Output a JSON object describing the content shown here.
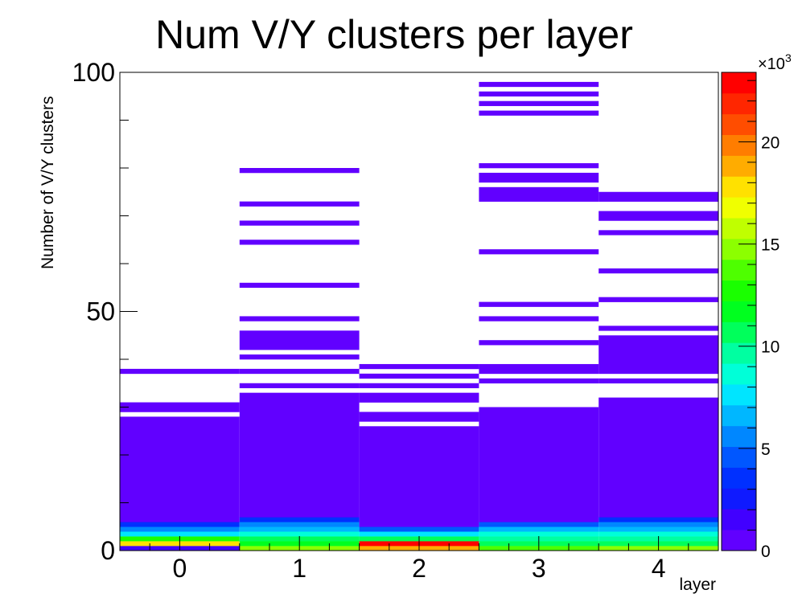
{
  "chart_data": {
    "type": "heatmap",
    "title": "Num V/Y clusters per layer",
    "xlabel": "layer",
    "ylabel": "Number of V/Y clusters",
    "xlim": [
      -0.5,
      4.5
    ],
    "ylim": [
      0,
      100
    ],
    "x_ticks": [
      "0",
      "1",
      "2",
      "3",
      "4"
    ],
    "y_ticks": [
      "0",
      "50",
      "100"
    ],
    "grid": false,
    "colorbar": {
      "min": 0,
      "max": 23400,
      "exponent_label": "×10",
      "exponent_power": "3",
      "ticks": [
        "0",
        "5",
        "10",
        "15",
        "20"
      ],
      "tick_values": [
        0,
        5000,
        10000,
        15000,
        20000
      ],
      "colors": [
        "#6100ff",
        "#4100ff",
        "#0f1aff",
        "#0030ff",
        "#0057ff",
        "#0087ff",
        "#00b7ff",
        "#00e5ff",
        "#00ffd8",
        "#00ffa1",
        "#00ff5b",
        "#00ff1f",
        "#1aff00",
        "#4eff00",
        "#8cff00",
        "#c0ff00",
        "#f0ff00",
        "#ffe100",
        "#ffac00",
        "#ff7d00",
        "#ff4d00",
        "#ff2600",
        "#ff0000"
      ]
    },
    "bins": [
      {
        "layer": 0,
        "ranges": [
          [
            0,
            1,
            "#4100ff"
          ],
          [
            1,
            2,
            "#ffe100"
          ],
          [
            2,
            3,
            "#1aff00"
          ],
          [
            3,
            4,
            "#00e5ff"
          ],
          [
            4,
            5,
            "#0087ff"
          ],
          [
            5,
            6,
            "#0030ff"
          ],
          [
            6,
            28,
            "#6100ff"
          ],
          [
            29,
            31,
            "#6100ff"
          ],
          [
            37,
            38,
            "#6100ff"
          ]
        ]
      },
      {
        "layer": 1,
        "ranges": [
          [
            0,
            1,
            "#8cff00"
          ],
          [
            1,
            2,
            "#00ff1f"
          ],
          [
            2,
            3,
            "#00ff5b"
          ],
          [
            3,
            4,
            "#00ffd8"
          ],
          [
            4,
            5,
            "#00b7ff"
          ],
          [
            5,
            6,
            "#0087ff"
          ],
          [
            6,
            7,
            "#0030ff"
          ],
          [
            7,
            33,
            "#6100ff"
          ],
          [
            34,
            35,
            "#6100ff"
          ],
          [
            37,
            38,
            "#6100ff"
          ],
          [
            40,
            41,
            "#6100ff"
          ],
          [
            42,
            46,
            "#6100ff"
          ],
          [
            48,
            49,
            "#6100ff"
          ],
          [
            55,
            56,
            "#6100ff"
          ],
          [
            64,
            65,
            "#6100ff"
          ],
          [
            68,
            69,
            "#6100ff"
          ],
          [
            72,
            73,
            "#6100ff"
          ],
          [
            79,
            80,
            "#6100ff"
          ]
        ]
      },
      {
        "layer": 2,
        "ranges": [
          [
            0,
            1,
            "#ffac00"
          ],
          [
            1,
            2,
            "#ff0000"
          ],
          [
            2,
            3,
            "#00ff5b"
          ],
          [
            3,
            4,
            "#00e5ff"
          ],
          [
            4,
            5,
            "#0057ff"
          ],
          [
            5,
            26,
            "#6100ff"
          ],
          [
            27,
            29,
            "#6100ff"
          ],
          [
            31,
            33,
            "#6100ff"
          ],
          [
            34,
            35,
            "#6100ff"
          ],
          [
            36,
            37,
            "#6100ff"
          ],
          [
            38,
            39,
            "#6100ff"
          ]
        ]
      },
      {
        "layer": 3,
        "ranges": [
          [
            0,
            1,
            "#4eff00"
          ],
          [
            1,
            2,
            "#00ff5b"
          ],
          [
            2,
            3,
            "#00ffa1"
          ],
          [
            3,
            4,
            "#00ffd8"
          ],
          [
            4,
            5,
            "#00b7ff"
          ],
          [
            5,
            6,
            "#0057ff"
          ],
          [
            6,
            30,
            "#6100ff"
          ],
          [
            35,
            36,
            "#6100ff"
          ],
          [
            37,
            39,
            "#6100ff"
          ],
          [
            43,
            44,
            "#6100ff"
          ],
          [
            48,
            49,
            "#6100ff"
          ],
          [
            51,
            52,
            "#6100ff"
          ],
          [
            62,
            63,
            "#6100ff"
          ],
          [
            73,
            76,
            "#6100ff"
          ],
          [
            77,
            79,
            "#6100ff"
          ],
          [
            80,
            81,
            "#6100ff"
          ],
          [
            91,
            92,
            "#6100ff"
          ],
          [
            93,
            94,
            "#6100ff"
          ],
          [
            95,
            96,
            "#6100ff"
          ],
          [
            97,
            98,
            "#6100ff"
          ]
        ]
      },
      {
        "layer": 4,
        "ranges": [
          [
            0,
            1,
            "#8cff00"
          ],
          [
            1,
            2,
            "#00ff5b"
          ],
          [
            2,
            3,
            "#00ffa1"
          ],
          [
            3,
            4,
            "#00ffd8"
          ],
          [
            4,
            5,
            "#00b7ff"
          ],
          [
            5,
            6,
            "#0087ff"
          ],
          [
            6,
            7,
            "#0030ff"
          ],
          [
            7,
            32,
            "#6100ff"
          ],
          [
            35,
            36,
            "#6100ff"
          ],
          [
            37,
            45,
            "#6100ff"
          ],
          [
            46,
            47,
            "#6100ff"
          ],
          [
            52,
            53,
            "#6100ff"
          ],
          [
            58,
            59,
            "#6100ff"
          ],
          [
            66,
            67,
            "#6100ff"
          ],
          [
            69,
            71,
            "#6100ff"
          ],
          [
            73,
            75,
            "#6100ff"
          ]
        ]
      }
    ]
  }
}
